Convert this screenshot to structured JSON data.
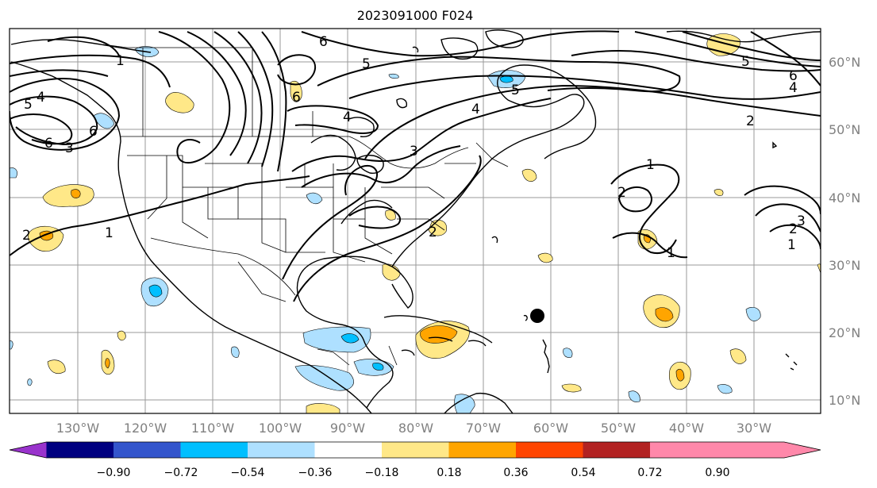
{
  "title": "2023091000 F024",
  "map": {
    "lon_labels": [
      "130°W",
      "120°W",
      "110°W",
      "100°W",
      "90°W",
      "80°W",
      "70°W",
      "60°W",
      "50°W",
      "40°W",
      "30°W"
    ],
    "lat_labels": [
      "60°N",
      "50°N",
      "40°N",
      "30°N",
      "20°N",
      "10°N"
    ],
    "contour_labels": [
      "1",
      "5",
      "4",
      "6",
      "3",
      "6",
      "2",
      "5",
      "6",
      "4",
      "6",
      "5",
      "6",
      "4",
      "2",
      "1",
      "2",
      "1",
      "1",
      "2",
      "3",
      "1",
      "2",
      "5",
      "4",
      "3"
    ],
    "marker": "storm-center-dot"
  },
  "colorbar": {
    "colors": [
      "#9933cc",
      "#000080",
      "#3355cc",
      "#00bfff",
      "#aee0ff",
      "#ffffff",
      "#ffe888",
      "#ffa500",
      "#ff4500",
      "#b22222",
      "#ff88aa"
    ],
    "ticks": [
      "−0.90",
      "−0.72",
      "−0.54",
      "−0.36",
      "−0.18",
      "0.18",
      "0.36",
      "0.54",
      "0.72",
      "0.90"
    ]
  }
}
